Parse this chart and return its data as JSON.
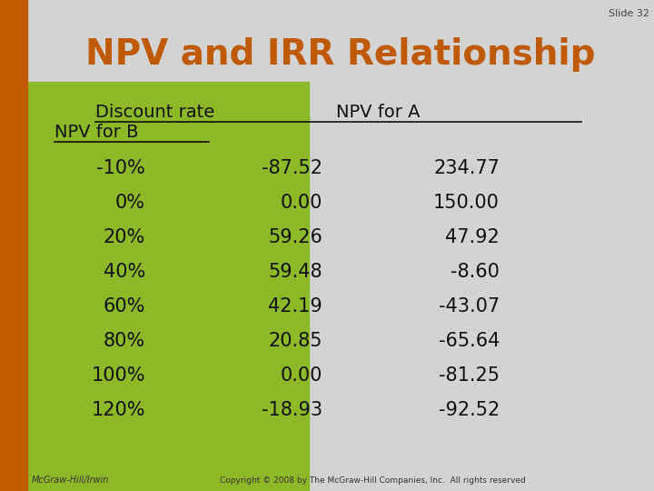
{
  "slide_label": "Slide 32",
  "title": "NPV and IRR Relationship",
  "title_color": "#C05A00",
  "bg_color": "#D3D3D3",
  "left_bar_color": "#C05A00",
  "green_panel_color": "#8DB828",
  "header_col1": "Discount rate",
  "header_col2": "NPV for A",
  "header_col3": "NPV for B",
  "rows": [
    [
      "-10%",
      "-87.52",
      "234.77"
    ],
    [
      "0%",
      "0.00",
      "150.00"
    ],
    [
      "20%",
      "59.26",
      "47.92"
    ],
    [
      "40%",
      "59.48",
      "-8.60"
    ],
    [
      "60%",
      "42.19",
      "-43.07"
    ],
    [
      "80%",
      "20.85",
      "-65.64"
    ],
    [
      "100%",
      "0.00",
      "-81.25"
    ],
    [
      "120%",
      "-18.93",
      "-92.52"
    ]
  ],
  "footer_left": "McGraw-Hill/Irwin",
  "footer_right": "Copyright © 2008 by The McGraw-Hill Companies, Inc.  All rights reserved",
  "font_family": "DejaVu Sans"
}
